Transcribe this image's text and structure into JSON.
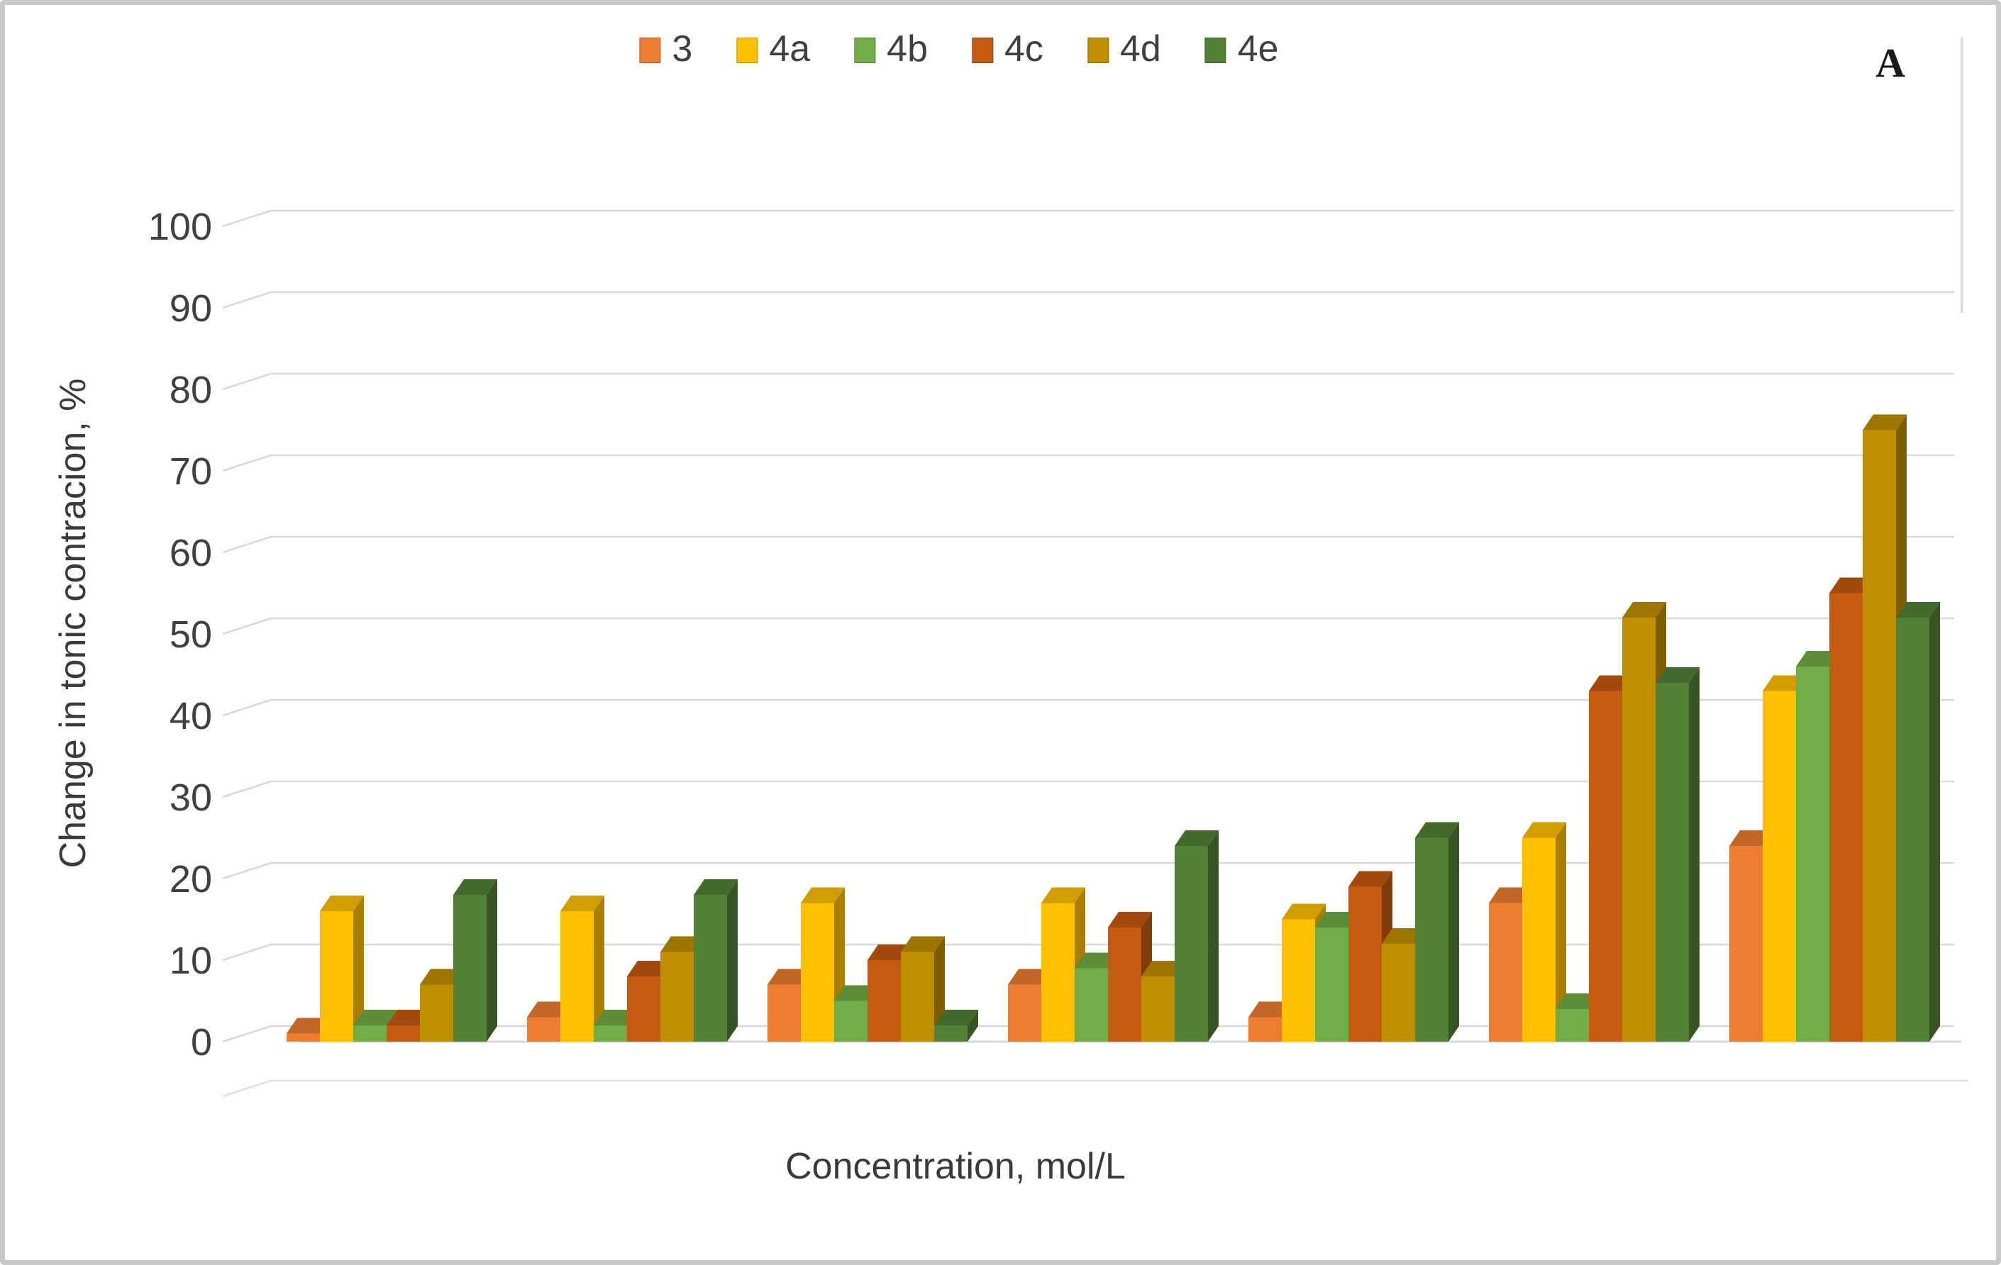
{
  "panel_letter": "A",
  "chart_data": {
    "type": "bar",
    "variant": "3d-clustered-column",
    "title": "",
    "xlabel": "Concentration, mol/L",
    "ylabel": "Change in tonic contracion, %",
    "ylim": [
      0,
      100
    ],
    "ytick_step": 10,
    "yticks": [
      "0",
      "10",
      "20",
      "30",
      "40",
      "50",
      "60",
      "70",
      "80",
      "90",
      "100"
    ],
    "grid": true,
    "legend_position": "top-center",
    "categories": [
      "",
      "",
      "",
      "",
      "",
      "",
      ""
    ],
    "series": [
      {
        "name": "3",
        "color": "#ED7D31",
        "values": [
          1,
          3,
          7,
          7,
          3,
          17,
          24
        ]
      },
      {
        "name": "4a",
        "color": "#FFC000",
        "values": [
          16,
          16,
          17,
          17,
          15,
          25,
          43
        ]
      },
      {
        "name": "4b",
        "color": "#70AD47",
        "values": [
          2,
          2,
          5,
          9,
          14,
          4,
          46
        ]
      },
      {
        "name": "4c",
        "color": "#C55A11",
        "values": [
          2,
          8,
          10,
          14,
          19,
          43,
          55
        ]
      },
      {
        "name": "4d",
        "color": "#BF8F00",
        "values": [
          7,
          11,
          11,
          8,
          12,
          52,
          75
        ]
      },
      {
        "name": "4e",
        "color": "#538135",
        "values": [
          18,
          18,
          2,
          24,
          25,
          44,
          52
        ]
      }
    ]
  }
}
